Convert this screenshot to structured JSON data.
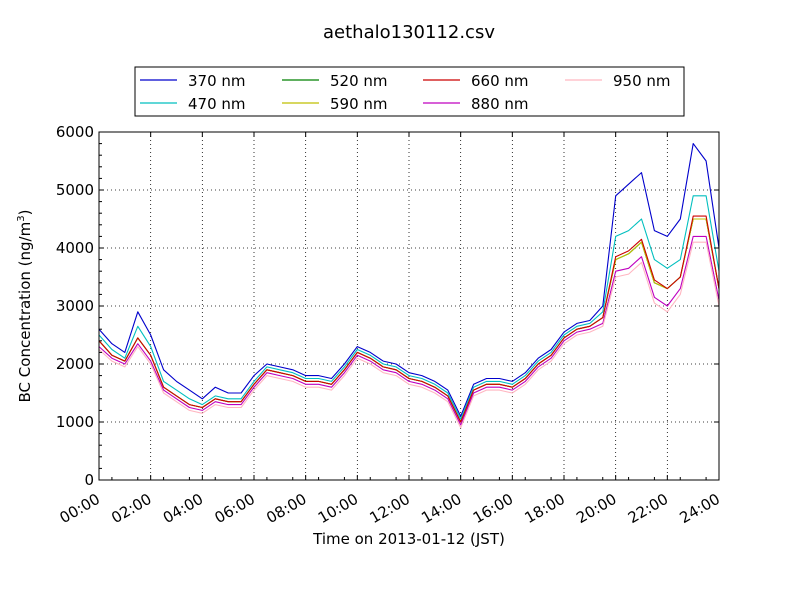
{
  "chart_data": {
    "type": "line",
    "title": "aethalo130112.csv",
    "xlabel": "Time on 2013-01-12 (JST)",
    "ylabel": "BC Concentration (ng/m",
    "ylabel_superscript": "3",
    "ylabel_suffix": ")",
    "xlim": [
      "00:00",
      "24:00"
    ],
    "ylim": [
      0,
      6000
    ],
    "x_ticks": [
      "00:00",
      "02:00",
      "04:00",
      "06:00",
      "08:00",
      "10:00",
      "12:00",
      "14:00",
      "16:00",
      "18:00",
      "20:00",
      "22:00",
      "24:00"
    ],
    "y_ticks": [
      "0",
      "1000",
      "2000",
      "3000",
      "4000",
      "5000",
      "6000"
    ],
    "grid": true,
    "legend_placement": "top-center",
    "x": [
      "00:00",
      "00:30",
      "01:00",
      "01:30",
      "02:00",
      "02:30",
      "03:00",
      "03:30",
      "04:00",
      "04:30",
      "05:00",
      "05:30",
      "06:00",
      "06:30",
      "07:00",
      "07:30",
      "08:00",
      "08:30",
      "09:00",
      "09:30",
      "10:00",
      "10:30",
      "11:00",
      "11:30",
      "12:00",
      "12:30",
      "13:00",
      "13:30",
      "14:00",
      "14:30",
      "15:00",
      "15:30",
      "16:00",
      "16:30",
      "17:00",
      "17:30",
      "18:00",
      "18:30",
      "19:00",
      "19:30",
      "20:00",
      "20:30",
      "21:00",
      "21:30",
      "22:00",
      "22:30",
      "23:00",
      "23:30",
      "24:00"
    ],
    "series": [
      {
        "name": "370 nm",
        "color": "#0000cc",
        "values": [
          2600,
          2350,
          2200,
          2900,
          2500,
          1900,
          1700,
          1550,
          1400,
          1600,
          1500,
          1500,
          1800,
          2000,
          1950,
          1900,
          1800,
          1800,
          1750,
          2000,
          2300,
          2200,
          2050,
          2000,
          1850,
          1800,
          1700,
          1550,
          1100,
          1650,
          1750,
          1750,
          1700,
          1850,
          2100,
          2250,
          2550,
          2700,
          2750,
          3000,
          4900,
          5100,
          5300,
          4300,
          4200,
          4500,
          5800,
          5500,
          4000
        ]
      },
      {
        "name": "470 nm",
        "color": "#00bfbf",
        "values": [
          2500,
          2250,
          2100,
          2650,
          2300,
          1700,
          1550,
          1400,
          1300,
          1450,
          1400,
          1400,
          1700,
          1950,
          1900,
          1850,
          1750,
          1750,
          1700,
          1950,
          2250,
          2150,
          2000,
          1950,
          1800,
          1750,
          1650,
          1500,
          1050,
          1600,
          1700,
          1700,
          1650,
          1800,
          2050,
          2200,
          2500,
          2650,
          2700,
          2900,
          4200,
          4300,
          4500,
          3800,
          3650,
          3800,
          4900,
          4900,
          3600
        ]
      },
      {
        "name": "520 nm",
        "color": "#008000",
        "values": [
          2400,
          2150,
          2050,
          2450,
          2150,
          1600,
          1450,
          1300,
          1250,
          1400,
          1350,
          1350,
          1650,
          1900,
          1850,
          1800,
          1700,
          1700,
          1650,
          1900,
          2200,
          2100,
          1950,
          1900,
          1750,
          1700,
          1600,
          1450,
          1000,
          1550,
          1650,
          1650,
          1600,
          1750,
          2000,
          2150,
          2450,
          2600,
          2650,
          2800,
          3800,
          3900,
          4100,
          3400,
          3300,
          3500,
          4500,
          4500,
          3300
        ]
      },
      {
        "name": "590 nm",
        "color": "#bfbf00",
        "values": [
          2400,
          2150,
          2050,
          2450,
          2150,
          1600,
          1450,
          1300,
          1250,
          1400,
          1350,
          1350,
          1650,
          1900,
          1850,
          1800,
          1700,
          1700,
          1650,
          1900,
          2200,
          2100,
          1950,
          1900,
          1750,
          1700,
          1600,
          1450,
          1000,
          1550,
          1650,
          1650,
          1600,
          1750,
          2000,
          2150,
          2450,
          2600,
          2650,
          2800,
          3800,
          3900,
          4100,
          3400,
          3300,
          3500,
          4500,
          4500,
          3300
        ]
      },
      {
        "name": "660 nm",
        "color": "#cc0000",
        "values": [
          2400,
          2150,
          2050,
          2450,
          2150,
          1600,
          1450,
          1300,
          1250,
          1400,
          1350,
          1350,
          1650,
          1900,
          1850,
          1800,
          1700,
          1700,
          1650,
          1900,
          2200,
          2100,
          1950,
          1900,
          1750,
          1700,
          1600,
          1450,
          1000,
          1550,
          1650,
          1650,
          1600,
          1750,
          2000,
          2150,
          2450,
          2600,
          2650,
          2800,
          3850,
          3950,
          4150,
          3450,
          3300,
          3500,
          4550,
          4550,
          3300
        ]
      },
      {
        "name": "880 nm",
        "color": "#bf00bf",
        "values": [
          2300,
          2100,
          2000,
          2350,
          2050,
          1550,
          1400,
          1250,
          1200,
          1350,
          1300,
          1300,
          1600,
          1850,
          1800,
          1750,
          1650,
          1650,
          1600,
          1850,
          2150,
          2050,
          1900,
          1850,
          1700,
          1650,
          1550,
          1400,
          950,
          1500,
          1600,
          1600,
          1550,
          1700,
          1950,
          2100,
          2400,
          2550,
          2600,
          2700,
          3600,
          3650,
          3850,
          3150,
          3000,
          3300,
          4200,
          4200,
          3100
        ]
      },
      {
        "name": "950 nm",
        "color": "#ffb6c1",
        "values": [
          2250,
          2050,
          1950,
          2300,
          2000,
          1500,
          1350,
          1200,
          1150,
          1300,
          1250,
          1250,
          1550,
          1800,
          1750,
          1700,
          1600,
          1600,
          1550,
          1800,
          2100,
          2000,
          1850,
          1800,
          1650,
          1600,
          1500,
          1350,
          900,
          1450,
          1550,
          1550,
          1500,
          1650,
          1900,
          2050,
          2350,
          2500,
          2550,
          2650,
          3500,
          3550,
          3750,
          3050,
          2900,
          3200,
          4100,
          4100,
          3000
        ]
      }
    ]
  }
}
